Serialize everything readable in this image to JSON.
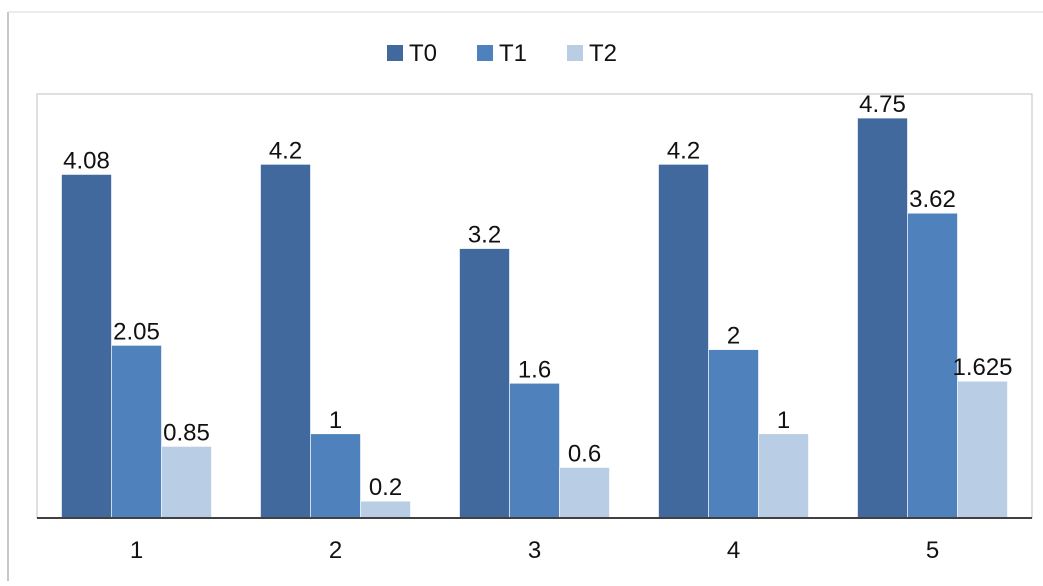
{
  "chart_data": {
    "type": "bar",
    "title": "",
    "xlabel": "",
    "ylabel": "",
    "categories": [
      "1",
      "2",
      "3",
      "4",
      "5"
    ],
    "series": [
      {
        "name": "T0",
        "color": "#41699E",
        "values": [
          4.08,
          4.2,
          3.2,
          4.2,
          4.75
        ],
        "labels": [
          "4.08",
          "4.2",
          "3.2",
          "4.2",
          "4.75"
        ]
      },
      {
        "name": "T1",
        "color": "#4F81BD",
        "values": [
          2.05,
          1,
          1.6,
          2,
          3.62
        ],
        "labels": [
          "2.05",
          "1",
          "1.6",
          "2",
          "3.62"
        ]
      },
      {
        "name": "T2",
        "color": "#B9CDE5",
        "values": [
          0.85,
          0.2,
          0.6,
          1,
          1.625
        ],
        "labels": [
          "0.85",
          "0.2",
          "0.6",
          "1",
          "1.625"
        ]
      }
    ],
    "ylim": [
      0,
      5
    ],
    "grid": false,
    "legend_position": "top-center",
    "data_labels": true
  }
}
